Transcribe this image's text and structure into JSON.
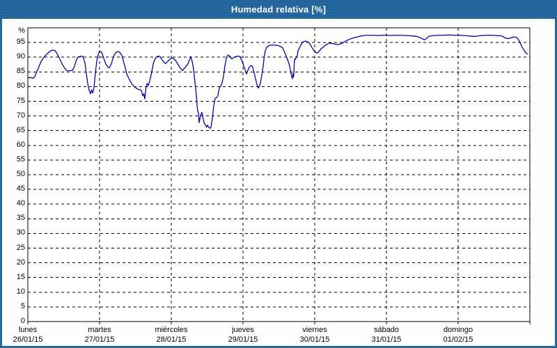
{
  "window": {
    "title": "Humedad relativa [%]"
  },
  "colors": {
    "titlebar": "#2569a2",
    "window_border": "#2368a1",
    "page_bg": "#fdfefd",
    "plot_bg": "#ffffff",
    "grid": "#000000",
    "frame": "#000000",
    "label_text": "#000000",
    "title_text": "#ffffff",
    "series_line": "#0000cc"
  },
  "chart_data": {
    "type": "line",
    "title": "Humedad relativa [%]",
    "unit_label": "%",
    "ylim": [
      0,
      100
    ],
    "y_ticks": [
      0,
      5,
      10,
      15,
      20,
      25,
      30,
      35,
      40,
      45,
      50,
      55,
      60,
      65,
      70,
      75,
      80,
      85,
      90,
      95
    ],
    "x_range_days": [
      0,
      7
    ],
    "grid": "dashed",
    "legend_position": "none",
    "x_ticks": [
      {
        "day": "lunes",
        "date": "26/01/15"
      },
      {
        "day": "martes",
        "date": "27/01/15"
      },
      {
        "day": "miércoles",
        "date": "28/01/15"
      },
      {
        "day": "jueves",
        "date": "29/01/15"
      },
      {
        "day": "viernes",
        "date": "30/01/15"
      },
      {
        "day": "sábado",
        "date": "31/01/15"
      },
      {
        "day": "domingo",
        "date": "01/02/15"
      }
    ],
    "series": [
      {
        "name": "Humedad relativa",
        "color": "#0000cc",
        "points": [
          [
            0.01,
            83.0
          ],
          [
            0.039,
            83.1
          ],
          [
            0.068,
            82.8
          ],
          [
            0.097,
            83.4
          ],
          [
            0.126,
            85.2
          ],
          [
            0.155,
            86.8
          ],
          [
            0.184,
            88.5
          ],
          [
            0.223,
            90.0
          ],
          [
            0.262,
            91.0
          ],
          [
            0.301,
            91.9
          ],
          [
            0.34,
            92.4
          ],
          [
            0.379,
            92.3
          ],
          [
            0.408,
            91.2
          ],
          [
            0.437,
            89.8
          ],
          [
            0.476,
            87.8
          ],
          [
            0.515,
            86.2
          ],
          [
            0.544,
            85.4
          ],
          [
            0.583,
            85.4
          ],
          [
            0.621,
            85.5
          ],
          [
            0.65,
            87.0
          ],
          [
            0.68,
            89.2
          ],
          [
            0.699,
            90.1
          ],
          [
            0.738,
            90.3
          ],
          [
            0.767,
            90.3
          ],
          [
            0.796,
            88.0
          ],
          [
            0.816,
            84.5
          ],
          [
            0.835,
            81.0
          ],
          [
            0.854,
            78.8
          ],
          [
            0.874,
            77.5
          ],
          [
            0.888,
            78.9
          ],
          [
            0.903,
            77.8
          ],
          [
            0.922,
            79.6
          ],
          [
            0.942,
            84.7
          ],
          [
            0.961,
            88.6
          ],
          [
            0.981,
            91.0
          ],
          [
            1.0,
            92.0
          ],
          [
            1.029,
            91.7
          ],
          [
            1.058,
            89.6
          ],
          [
            1.087,
            87.6
          ],
          [
            1.117,
            86.6
          ],
          [
            1.136,
            86.4
          ],
          [
            1.165,
            87.8
          ],
          [
            1.194,
            90.2
          ],
          [
            1.223,
            91.5
          ],
          [
            1.252,
            92.0
          ],
          [
            1.282,
            91.7
          ],
          [
            1.311,
            90.6
          ],
          [
            1.34,
            88.0
          ],
          [
            1.359,
            86.3
          ],
          [
            1.379,
            84.3
          ],
          [
            1.398,
            83.3
          ],
          [
            1.427,
            81.9
          ],
          [
            1.456,
            80.7
          ],
          [
            1.485,
            80.0
          ],
          [
            1.524,
            79.2
          ],
          [
            1.553,
            79.0
          ],
          [
            1.583,
            78.7
          ],
          [
            1.602,
            76.8
          ],
          [
            1.617,
            77.6
          ],
          [
            1.631,
            75.8
          ],
          [
            1.65,
            79.9
          ],
          [
            1.665,
            81.1
          ],
          [
            1.68,
            80.3
          ],
          [
            1.699,
            81.9
          ],
          [
            1.718,
            83.9
          ],
          [
            1.738,
            86.3
          ],
          [
            1.748,
            87.8
          ],
          [
            1.767,
            89.0
          ],
          [
            1.786,
            89.9
          ],
          [
            1.816,
            90.4
          ],
          [
            1.845,
            90.2
          ],
          [
            1.874,
            89.0
          ],
          [
            1.903,
            88.2
          ],
          [
            1.922,
            87.8
          ],
          [
            1.951,
            88.6
          ],
          [
            1.981,
            89.3
          ],
          [
            2.01,
            89.8
          ],
          [
            2.039,
            89.4
          ],
          [
            2.068,
            88.6
          ],
          [
            2.087,
            87.8
          ],
          [
            2.117,
            86.6
          ],
          [
            2.155,
            85.4
          ],
          [
            2.184,
            86.3
          ],
          [
            2.214,
            87.1
          ],
          [
            2.233,
            87.8
          ],
          [
            2.252,
            89.0
          ],
          [
            2.272,
            90.2
          ],
          [
            2.291,
            88.6
          ],
          [
            2.311,
            85.9
          ],
          [
            2.33,
            81.5
          ],
          [
            2.35,
            77.0
          ],
          [
            2.359,
            73.5
          ],
          [
            2.369,
            71.6
          ],
          [
            2.379,
            71.2
          ],
          [
            2.388,
            67.7
          ],
          [
            2.408,
            70.2
          ],
          [
            2.427,
            71.2
          ],
          [
            2.447,
            68.8
          ],
          [
            2.456,
            67.7
          ],
          [
            2.476,
            66.9
          ],
          [
            2.495,
            66.2
          ],
          [
            2.505,
            66.9
          ],
          [
            2.524,
            66.1
          ],
          [
            2.544,
            65.8
          ],
          [
            2.553,
            66.1
          ],
          [
            2.573,
            69.2
          ],
          [
            2.592,
            73.5
          ],
          [
            2.612,
            76.0
          ],
          [
            2.631,
            76.2
          ],
          [
            2.65,
            76.8
          ],
          [
            2.67,
            79.5
          ],
          [
            2.689,
            80.2
          ],
          [
            2.709,
            81.3
          ],
          [
            2.728,
            83.5
          ],
          [
            2.748,
            87.0
          ],
          [
            2.767,
            89.6
          ],
          [
            2.786,
            90.7
          ],
          [
            2.816,
            90.4
          ],
          [
            2.845,
            89.4
          ],
          [
            2.874,
            90.0
          ],
          [
            2.913,
            90.3
          ],
          [
            2.942,
            90.4
          ],
          [
            2.961,
            90.0
          ],
          [
            2.981,
            89.0
          ],
          [
            3.0,
            87.8
          ],
          [
            3.019,
            86.4
          ],
          [
            3.039,
            85.0
          ],
          [
            3.049,
            84.3
          ],
          [
            3.068,
            85.5
          ],
          [
            3.087,
            86.6
          ],
          [
            3.117,
            87.2
          ],
          [
            3.136,
            86.6
          ],
          [
            3.155,
            84.7
          ],
          [
            3.175,
            82.7
          ],
          [
            3.194,
            80.7
          ],
          [
            3.214,
            79.5
          ],
          [
            3.223,
            79.8
          ],
          [
            3.243,
            81.1
          ],
          [
            3.262,
            83.9
          ],
          [
            3.282,
            87.0
          ],
          [
            3.296,
            90.2
          ],
          [
            3.311,
            92.2
          ],
          [
            3.33,
            93.4
          ],
          [
            3.369,
            94.0
          ],
          [
            3.398,
            94.2
          ],
          [
            3.437,
            94.1
          ],
          [
            3.485,
            94.0
          ],
          [
            3.524,
            93.6
          ],
          [
            3.553,
            93.2
          ],
          [
            3.583,
            91.5
          ],
          [
            3.612,
            89.8
          ],
          [
            3.641,
            87.9
          ],
          [
            3.66,
            85.8
          ],
          [
            3.68,
            83.3
          ],
          [
            3.689,
            82.7
          ],
          [
            3.699,
            84.5
          ],
          [
            3.706,
            83.3
          ],
          [
            3.716,
            88.2
          ],
          [
            3.722,
            89.4
          ],
          [
            3.728,
            89.2
          ],
          [
            3.757,
            90.6
          ],
          [
            3.767,
            92.2
          ],
          [
            3.806,
            94.1
          ],
          [
            3.835,
            95.2
          ],
          [
            3.864,
            95.5
          ],
          [
            3.893,
            95.3
          ],
          [
            3.922,
            94.9
          ],
          [
            3.951,
            93.7
          ],
          [
            3.981,
            92.6
          ],
          [
            4.0,
            92.0
          ],
          [
            4.029,
            91.4
          ],
          [
            4.058,
            91.8
          ],
          [
            4.087,
            92.9
          ],
          [
            4.117,
            93.4
          ],
          [
            4.146,
            94.0
          ],
          [
            4.175,
            94.5
          ],
          [
            4.204,
            94.8
          ],
          [
            4.233,
            94.7
          ],
          [
            4.262,
            94.6
          ],
          [
            4.291,
            94.4
          ],
          [
            4.32,
            94.3
          ],
          [
            4.35,
            94.5
          ],
          [
            4.379,
            94.7
          ],
          [
            4.417,
            95.3
          ],
          [
            4.466,
            95.9
          ],
          [
            4.505,
            96.3
          ],
          [
            4.544,
            96.6
          ],
          [
            4.592,
            96.9
          ],
          [
            4.641,
            97.2
          ],
          [
            4.689,
            97.4
          ],
          [
            4.738,
            97.5
          ],
          [
            4.806,
            97.5
          ],
          [
            4.874,
            97.4
          ],
          [
            4.942,
            97.5
          ],
          [
            5.0,
            97.5
          ],
          [
            5.068,
            97.4
          ],
          [
            5.126,
            97.5
          ],
          [
            5.194,
            97.5
          ],
          [
            5.262,
            97.4
          ],
          [
            5.33,
            97.3
          ],
          [
            5.388,
            97.2
          ],
          [
            5.437,
            97.0
          ],
          [
            5.485,
            96.5
          ],
          [
            5.515,
            96.1
          ],
          [
            5.534,
            95.9
          ],
          [
            5.563,
            96.5
          ],
          [
            5.592,
            97.1
          ],
          [
            5.631,
            97.3
          ],
          [
            5.68,
            97.4
          ],
          [
            5.728,
            97.5
          ],
          [
            5.796,
            97.5
          ],
          [
            5.874,
            97.6
          ],
          [
            5.942,
            97.5
          ],
          [
            5.99,
            97.5
          ],
          [
            6.019,
            97.5
          ],
          [
            6.068,
            97.4
          ],
          [
            6.117,
            97.3
          ],
          [
            6.165,
            97.2
          ],
          [
            6.214,
            97.1
          ],
          [
            6.252,
            97.1
          ],
          [
            6.291,
            97.3
          ],
          [
            6.34,
            97.4
          ],
          [
            6.388,
            97.5
          ],
          [
            6.437,
            97.5
          ],
          [
            6.485,
            97.5
          ],
          [
            6.524,
            97.4
          ],
          [
            6.563,
            97.3
          ],
          [
            6.602,
            97.3
          ],
          [
            6.641,
            96.8
          ],
          [
            6.67,
            96.4
          ],
          [
            6.709,
            96.4
          ],
          [
            6.738,
            96.6
          ],
          [
            6.767,
            96.9
          ],
          [
            6.796,
            96.8
          ],
          [
            6.816,
            96.7
          ],
          [
            6.845,
            95.9
          ],
          [
            6.864,
            94.9
          ],
          [
            6.893,
            93.4
          ],
          [
            6.913,
            92.6
          ],
          [
            6.942,
            91.5
          ],
          [
            6.971,
            91.1
          ]
        ]
      }
    ]
  }
}
